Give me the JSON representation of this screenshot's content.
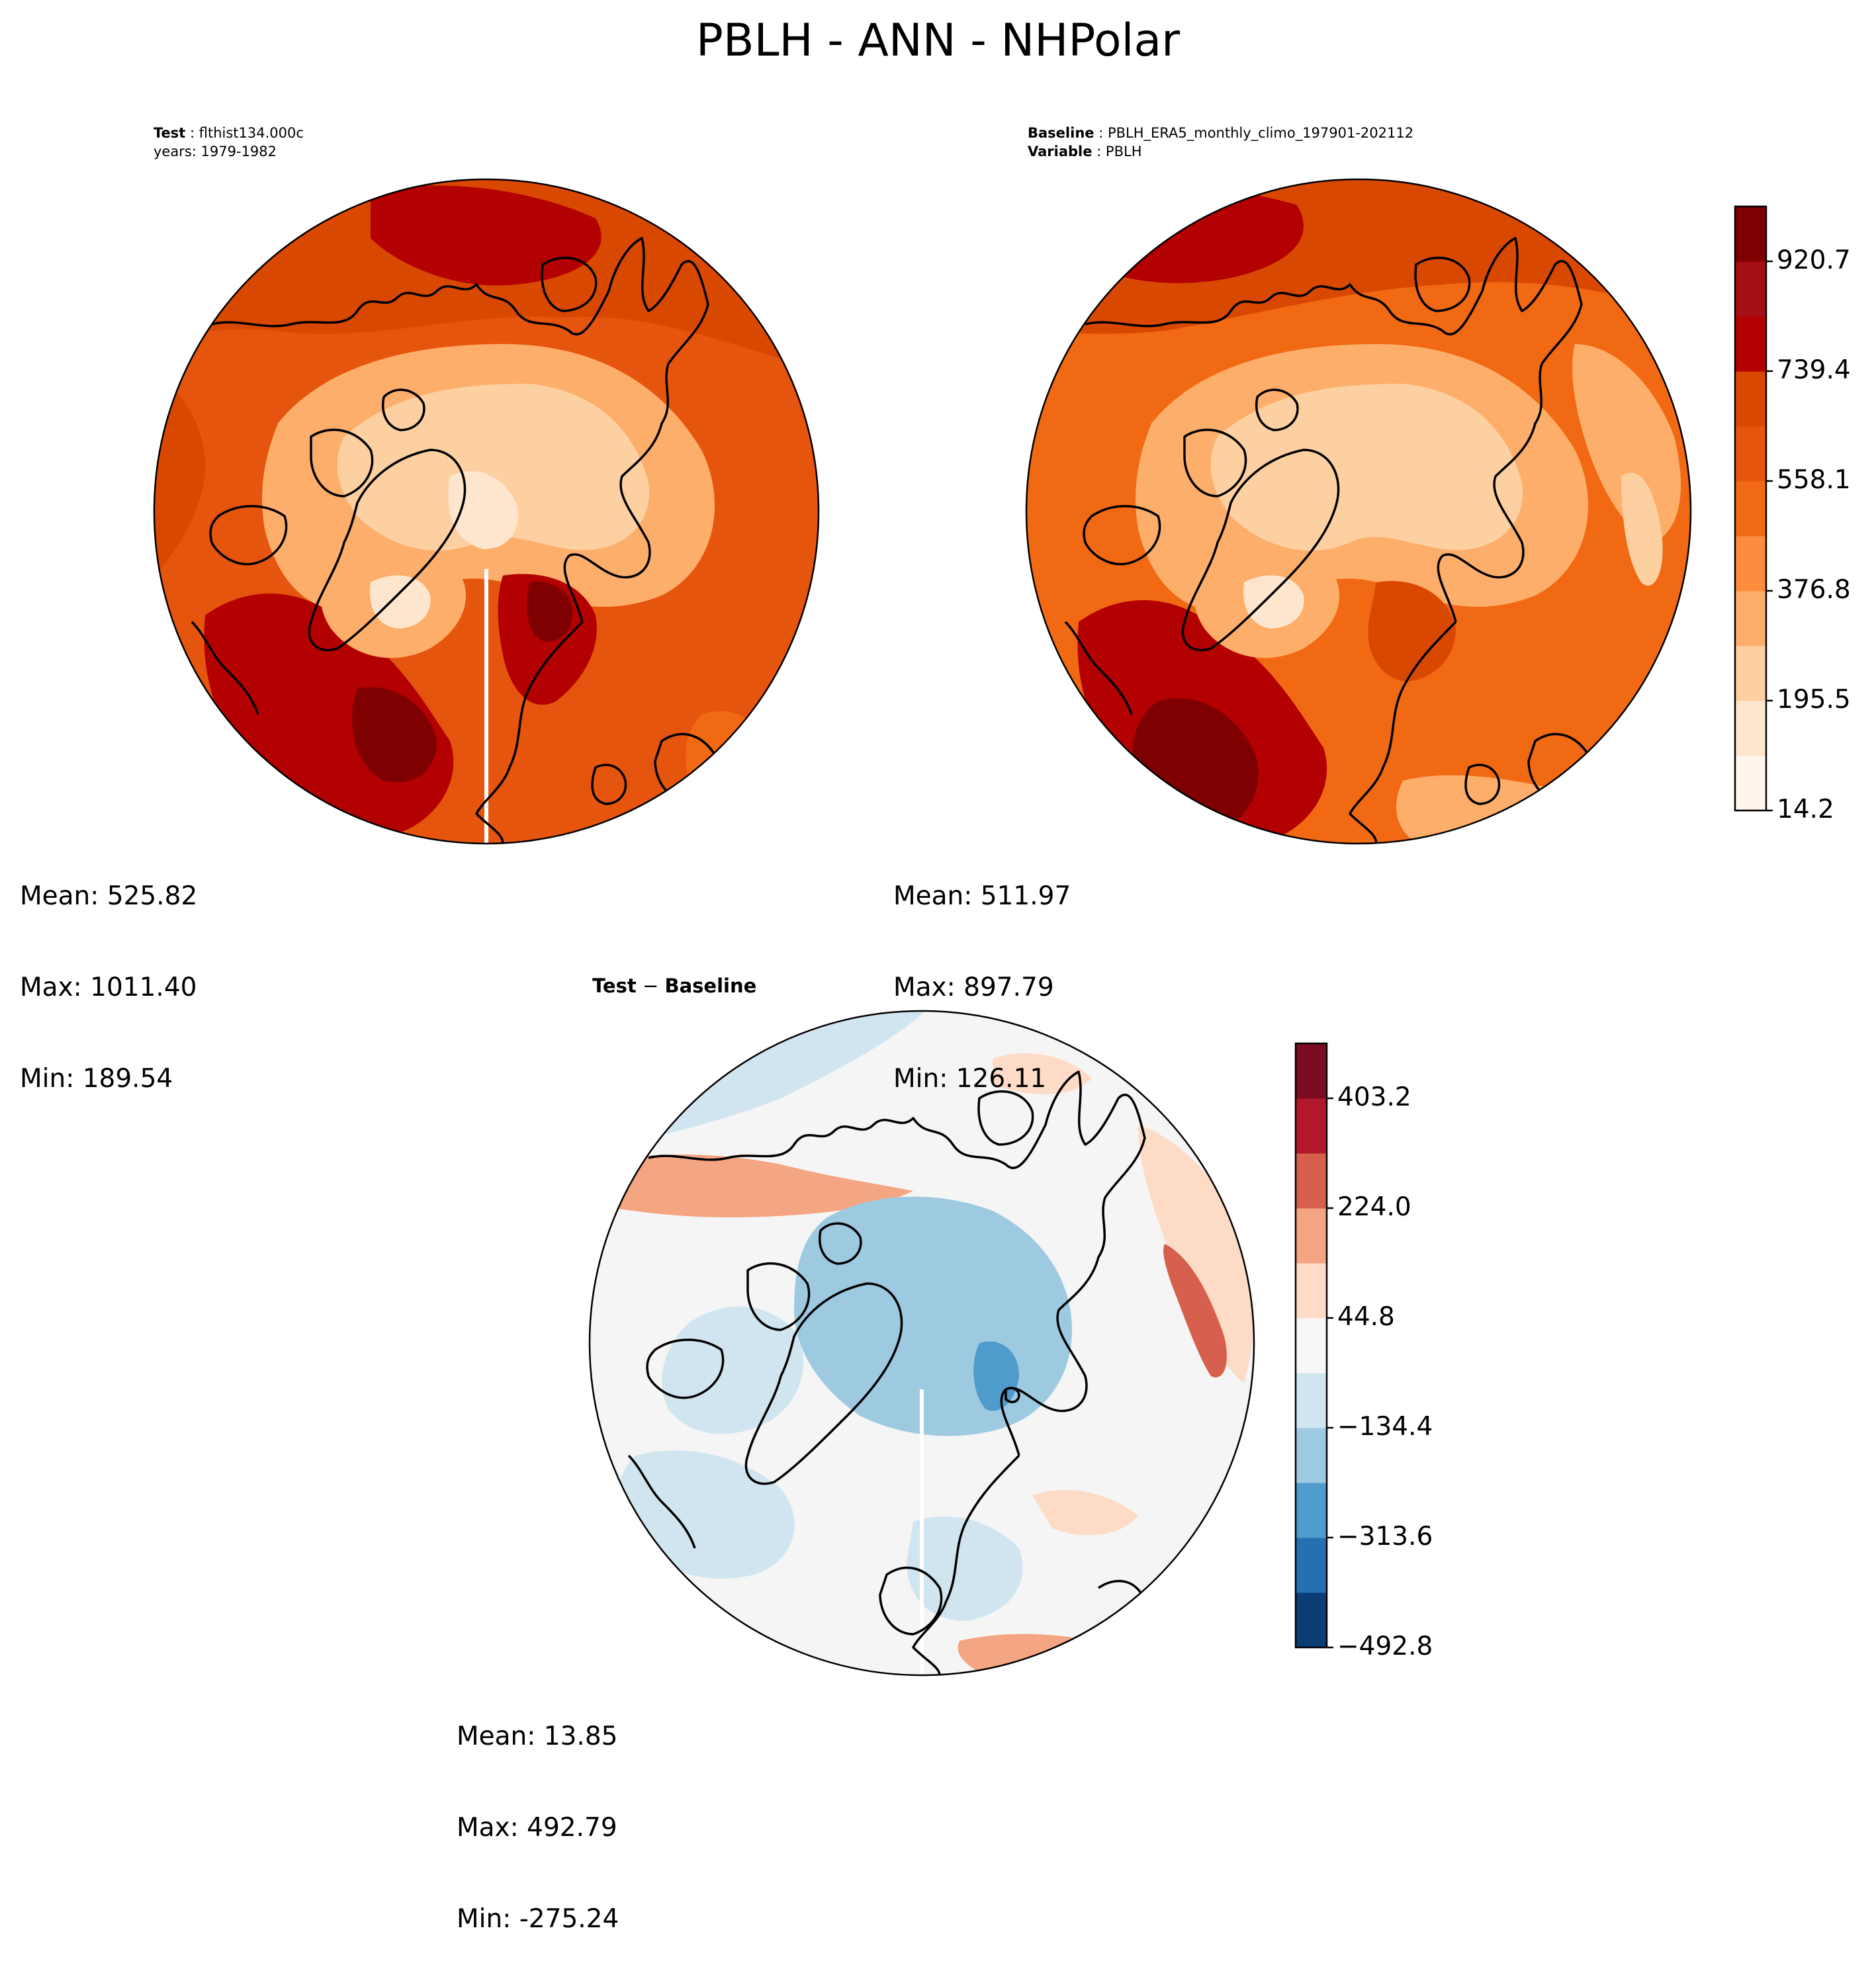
{
  "title": "PBLH - ANN - NHPolar",
  "panels": {
    "test": {
      "header_label": "Test",
      "header_value": "flthist134.000c",
      "years": "years: 1979-1982",
      "stats": {
        "mean": "Mean: 525.82",
        "max": "Max: 1011.40",
        "min": "Min: 189.54"
      }
    },
    "baseline": {
      "header_label": "Baseline",
      "header_value": "PBLH_ERA5_monthly_climo_197901-202112",
      "variable_label": "Variable",
      "variable_value": "PBLH",
      "stats": {
        "mean": "Mean: 511.97",
        "max": "Max: 897.79",
        "min": "Min: 126.11"
      }
    },
    "diff": {
      "title_left": "Test",
      "title_op": " − ",
      "title_right": "Baseline",
      "stats": {
        "mean": "Mean: 13.85",
        "max": "Max: 492.79",
        "min": "Min: -275.24"
      }
    }
  },
  "colorbars": {
    "main": {
      "ticks": [
        "920.7",
        "739.4",
        "558.1",
        "376.8",
        "195.5",
        "14.2"
      ],
      "colors": [
        "#fff5eb",
        "#fee6ce",
        "#fdd0a2",
        "#fdae6b",
        "#fd8d3c",
        "#f16913",
        "#e6550d",
        "#d94801",
        "#b30000",
        "#a50f15",
        "#7f0000"
      ]
    },
    "diff": {
      "ticks": [
        "403.2",
        "224.0",
        "44.8",
        "−134.4",
        "−313.6",
        "−492.8"
      ],
      "colors": [
        "#0b3c74",
        "#2670b2",
        "#4f9bcb",
        "#9ecae1",
        "#d1e5f0",
        "#f7f7f7",
        "#fddbc7",
        "#f4a582",
        "#d6604d",
        "#b2182b",
        "#7a0b20"
      ]
    }
  },
  "palette": {
    "ocean_warm": "#d9451f",
    "land_cool": "#fbd3a0",
    "diff_neutral": "#f5f5f5",
    "diff_blue": "#9ecae1",
    "diff_red": "#f4a582"
  }
}
